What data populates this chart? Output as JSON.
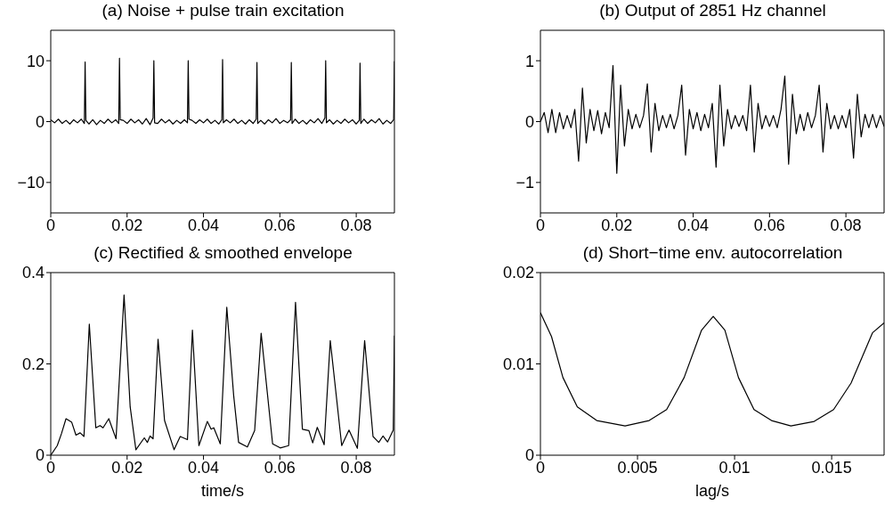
{
  "chart_data": [
    {
      "type": "line",
      "title": "(a) Noise + pulse train excitation",
      "xlim": [
        0,
        0.09
      ],
      "xticks": [
        0,
        0.02,
        0.04,
        0.06,
        0.08
      ],
      "ylim": [
        -15,
        15
      ],
      "yticks": [
        -10,
        0,
        10
      ],
      "grid": false,
      "marker": "none",
      "line_style": "solid",
      "series": [
        {
          "color": "#000000",
          "x": [
            0,
            0.001,
            0.002,
            0.003,
            0.004,
            0.005,
            0.006,
            0.007,
            0.008,
            0.0088,
            0.009,
            0.0092,
            0.01,
            0.011,
            0.012,
            0.013,
            0.014,
            0.015,
            0.016,
            0.017,
            0.0178,
            0.018,
            0.0182,
            0.019,
            0.02,
            0.021,
            0.022,
            0.023,
            0.024,
            0.025,
            0.026,
            0.0268,
            0.027,
            0.0272,
            0.028,
            0.029,
            0.03,
            0.031,
            0.032,
            0.033,
            0.034,
            0.035,
            0.0358,
            0.036,
            0.0362,
            0.037,
            0.038,
            0.039,
            0.04,
            0.041,
            0.042,
            0.043,
            0.044,
            0.0448,
            0.045,
            0.0452,
            0.046,
            0.047,
            0.048,
            0.049,
            0.05,
            0.051,
            0.052,
            0.053,
            0.0538,
            0.054,
            0.0542,
            0.055,
            0.056,
            0.057,
            0.058,
            0.059,
            0.06,
            0.061,
            0.062,
            0.0628,
            0.063,
            0.0632,
            0.064,
            0.065,
            0.066,
            0.067,
            0.068,
            0.069,
            0.07,
            0.071,
            0.0718,
            0.072,
            0.0722,
            0.073,
            0.074,
            0.075,
            0.076,
            0.077,
            0.078,
            0.079,
            0.08,
            0.0808,
            0.081,
            0.0812,
            0.082,
            0.083,
            0.084,
            0.085,
            0.086,
            0.087,
            0.088,
            0.089,
            0.0898,
            0.09
          ],
          "values": [
            0.3,
            -0.2,
            0.4,
            -0.3,
            0.2,
            -0.4,
            0.3,
            -0.2,
            0.4,
            -0.3,
            9.8,
            0.2,
            -0.4,
            0.3,
            -0.5,
            0.2,
            -0.3,
            0.4,
            -0.2,
            0.3,
            -0.3,
            10.4,
            0.3,
            0.2,
            -0.3,
            0.4,
            -0.2,
            0.3,
            -0.4,
            0.5,
            -0.5,
            0.6,
            10.0,
            -0.2,
            -0.3,
            0.4,
            -0.2,
            0.3,
            -0.4,
            0.2,
            -0.3,
            0.3,
            -0.2,
            10.0,
            0.4,
            0.2,
            -0.3,
            0.3,
            -0.2,
            0.4,
            -0.3,
            0.2,
            -0.4,
            0.3,
            10.2,
            -0.2,
            0.3,
            -0.2,
            0.4,
            -0.3,
            0.2,
            -0.4,
            0.3,
            -0.3,
            0.4,
            9.7,
            -0.3,
            0.2,
            -0.4,
            0.3,
            -0.2,
            0.5,
            -0.3,
            0.2,
            -0.2,
            0.3,
            9.7,
            -0.3,
            0.4,
            -0.3,
            0.2,
            -0.4,
            0.3,
            -0.2,
            0.5,
            -0.3,
            0.6,
            10.0,
            -0.2,
            0.3,
            -0.4,
            0.2,
            -0.3,
            0.4,
            -0.2,
            0.3,
            -0.4,
            0.2,
            9.6,
            -0.3,
            0.4,
            -0.3,
            0.3,
            -0.2,
            0.5,
            -0.4,
            0.2,
            -0.3,
            0.3,
            9.9
          ]
        }
      ]
    },
    {
      "type": "line",
      "title": "(b) Output of 2851 Hz channel",
      "xlim": [
        0,
        0.09
      ],
      "xticks": [
        0,
        0.02,
        0.04,
        0.06,
        0.08
      ],
      "ylim": [
        -1.5,
        1.5
      ],
      "yticks": [
        -1,
        0,
        1
      ],
      "grid": false,
      "marker": "none",
      "line_style": "solid",
      "series": [
        {
          "color": "#000000",
          "x": [
            0,
            0.001,
            0.002,
            0.003,
            0.004,
            0.005,
            0.006,
            0.007,
            0.008,
            0.009,
            0.01,
            0.011,
            0.012,
            0.013,
            0.014,
            0.015,
            0.016,
            0.017,
            0.018,
            0.019,
            0.02,
            0.021,
            0.022,
            0.023,
            0.024,
            0.025,
            0.026,
            0.027,
            0.028,
            0.029,
            0.03,
            0.031,
            0.032,
            0.033,
            0.034,
            0.035,
            0.036,
            0.037,
            0.038,
            0.039,
            0.04,
            0.041,
            0.042,
            0.043,
            0.044,
            0.045,
            0.046,
            0.047,
            0.048,
            0.049,
            0.05,
            0.051,
            0.052,
            0.053,
            0.054,
            0.055,
            0.056,
            0.057,
            0.058,
            0.059,
            0.06,
            0.061,
            0.062,
            0.063,
            0.064,
            0.065,
            0.066,
            0.067,
            0.068,
            0.069,
            0.07,
            0.071,
            0.072,
            0.073,
            0.074,
            0.075,
            0.076,
            0.077,
            0.078,
            0.079,
            0.08,
            0.081,
            0.082,
            0.083,
            0.084,
            0.085,
            0.086,
            0.087,
            0.088,
            0.089,
            0.09
          ],
          "values": [
            0,
            0.15,
            -0.18,
            0.2,
            -0.18,
            0.15,
            -0.12,
            0.1,
            -0.1,
            0.2,
            -0.65,
            0.55,
            -0.35,
            0.2,
            -0.15,
            0.18,
            -0.2,
            0.15,
            -0.1,
            0.92,
            -0.85,
            0.6,
            -0.4,
            0.2,
            -0.12,
            0.12,
            -0.1,
            0.1,
            0.62,
            -0.5,
            0.3,
            -0.15,
            0.1,
            -0.1,
            0.12,
            -0.12,
            0.1,
            0.6,
            -0.55,
            0.2,
            -0.12,
            0.15,
            -0.15,
            0.12,
            -0.1,
            0.3,
            -0.75,
            0.6,
            -0.4,
            0.2,
            -0.12,
            0.1,
            -0.08,
            0.1,
            -0.15,
            0.6,
            -0.5,
            0.3,
            -0.12,
            0.1,
            -0.08,
            0.1,
            -0.1,
            0.2,
            0.75,
            -0.7,
            0.45,
            -0.2,
            0.12,
            -0.15,
            0.15,
            -0.1,
            0.1,
            0.6,
            -0.5,
            0.3,
            -0.12,
            0.1,
            -0.12,
            0.1,
            -0.1,
            0.2,
            -0.6,
            0.45,
            -0.25,
            0.12,
            -0.1,
            0.12,
            -0.1,
            0.1,
            -0.08
          ]
        }
      ]
    },
    {
      "type": "line",
      "title": "(c) Rectified & smoothed envelope",
      "xlabel": "time/s",
      "xlim": [
        0,
        0.09
      ],
      "xticks": [
        0,
        0.02,
        0.04,
        0.06,
        0.08
      ],
      "ylim": [
        0,
        0.4
      ],
      "yticks": [
        0,
        0.2,
        0.4
      ],
      "grid": false,
      "marker": "none",
      "line_style": "solid",
      "series": [
        {
          "color": "#000000",
          "x": [
            0,
            0.0017,
            0.0028,
            0.004,
            0.0055,
            0.0066,
            0.0077,
            0.0087,
            0.0101,
            0.0118,
            0.0129,
            0.0137,
            0.0152,
            0.0171,
            0.0192,
            0.0208,
            0.0223,
            0.0245,
            0.0253,
            0.026,
            0.0268,
            0.0281,
            0.0298,
            0.0323,
            0.0339,
            0.0358,
            0.0371,
            0.0388,
            0.041,
            0.042,
            0.0427,
            0.0444,
            0.0461,
            0.0479,
            0.0492,
            0.0515,
            0.0534,
            0.0551,
            0.0581,
            0.0601,
            0.0623,
            0.0641,
            0.0659,
            0.0676,
            0.0686,
            0.0698,
            0.0716,
            0.0732,
            0.0762,
            0.0781,
            0.0803,
            0.0822,
            0.0844,
            0.0859,
            0.087,
            0.0882,
            0.0897,
            0.09
          ],
          "values": [
            0,
            0.021,
            0.047,
            0.08,
            0.072,
            0.044,
            0.049,
            0.041,
            0.287,
            0.06,
            0.065,
            0.06,
            0.08,
            0.036,
            0.351,
            0.106,
            0.012,
            0.038,
            0.028,
            0.042,
            0.036,
            0.254,
            0.076,
            0.012,
            0.041,
            0.034,
            0.274,
            0.021,
            0.074,
            0.057,
            0.06,
            0.025,
            0.324,
            0.131,
            0.028,
            0.018,
            0.054,
            0.267,
            0.025,
            0.016,
            0.021,
            0.335,
            0.057,
            0.054,
            0.027,
            0.061,
            0.023,
            0.251,
            0.021,
            0.055,
            0.015,
            0.251,
            0.041,
            0.028,
            0.042,
            0.029,
            0.055,
            0.262
          ]
        }
      ]
    },
    {
      "type": "line",
      "title": "(d) Short−time env. autocorrelation",
      "xlabel": "lag/s",
      "xlim": [
        0,
        0.0177
      ],
      "xticks": [
        0,
        0.005,
        0.01,
        0.015
      ],
      "ylim": [
        0,
        0.02
      ],
      "yticks": [
        0,
        0.01,
        0.02
      ],
      "grid": false,
      "marker": "none",
      "line_style": "solid",
      "series": [
        {
          "color": "#000000",
          "x": [
            0,
            0.00057,
            0.00116,
            0.0019,
            0.0029,
            0.00436,
            0.0056,
            0.0065,
            0.0074,
            0.0083,
            0.0089,
            0.0095,
            0.0102,
            0.011,
            0.0119,
            0.0129,
            0.0141,
            0.0151,
            0.016,
            0.0171,
            0.0177
          ],
          "values": [
            0.0156,
            0.013,
            0.0085,
            0.0053,
            0.0038,
            0.0032,
            0.0038,
            0.005,
            0.0085,
            0.0137,
            0.0152,
            0.0137,
            0.0085,
            0.005,
            0.0038,
            0.0032,
            0.0037,
            0.005,
            0.0079,
            0.0134,
            0.0145
          ]
        }
      ]
    }
  ]
}
